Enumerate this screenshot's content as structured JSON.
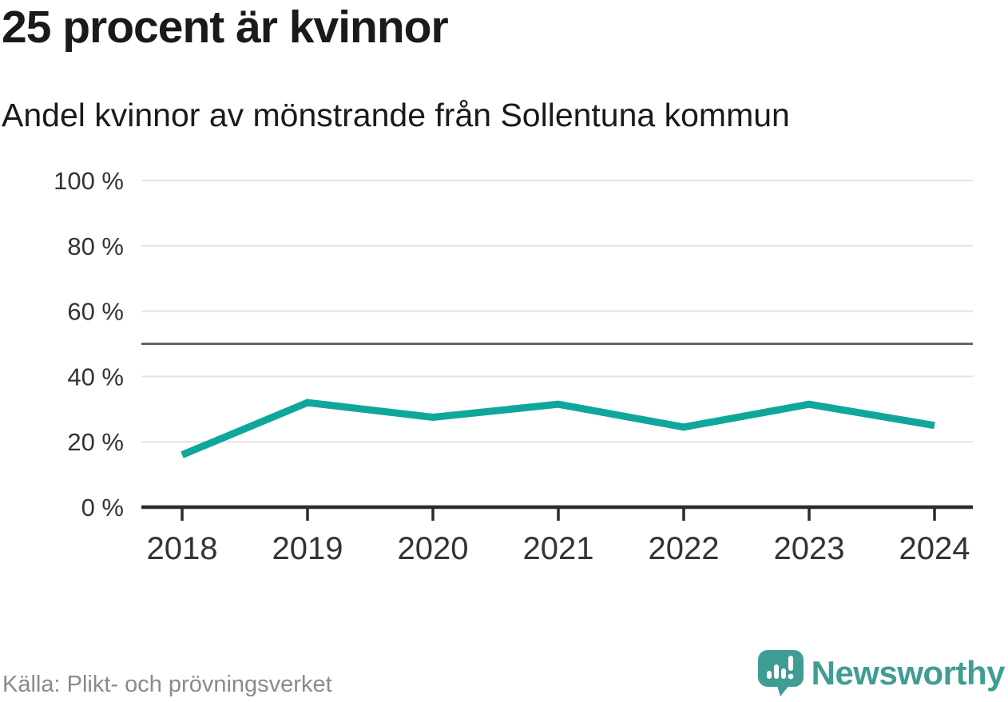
{
  "header": {
    "title": "25 procent är kvinnor",
    "subtitle": "Andel kvinnor av mönstrande från Sollentuna kommun"
  },
  "footer": {
    "source": "Källa: Plikt- och prövningsverket",
    "brand": "Newsworthy"
  },
  "colors": {
    "line": "#0FA79B",
    "grid": "#E3E3E3",
    "reference_line": "#666666",
    "axis": "#2B2B2B",
    "tick_label": "#333333",
    "title": "#1A1A1A",
    "source_text": "#8A8A8A",
    "brand_teal": "#3F9D93"
  },
  "chart_data": {
    "type": "line",
    "title": "25 procent är kvinnor",
    "subtitle": "Andel kvinnor av mönstrande från Sollentuna kommun",
    "source": "Källa: Plikt- och prövningsverket",
    "x": [
      "2018",
      "2019",
      "2020",
      "2021",
      "2022",
      "2023",
      "2024"
    ],
    "series": [
      {
        "name": "Andel kvinnor av mönstrande",
        "values": [
          16,
          32,
          27.5,
          31.5,
          24.5,
          31.5,
          25
        ]
      }
    ],
    "unit": "%",
    "ylim": [
      0,
      100
    ],
    "yticks": [
      0,
      20,
      40,
      60,
      80,
      100
    ],
    "ytick_format": "{v} %",
    "reference_line": 50,
    "grid": "horizontal",
    "legend": "none"
  }
}
